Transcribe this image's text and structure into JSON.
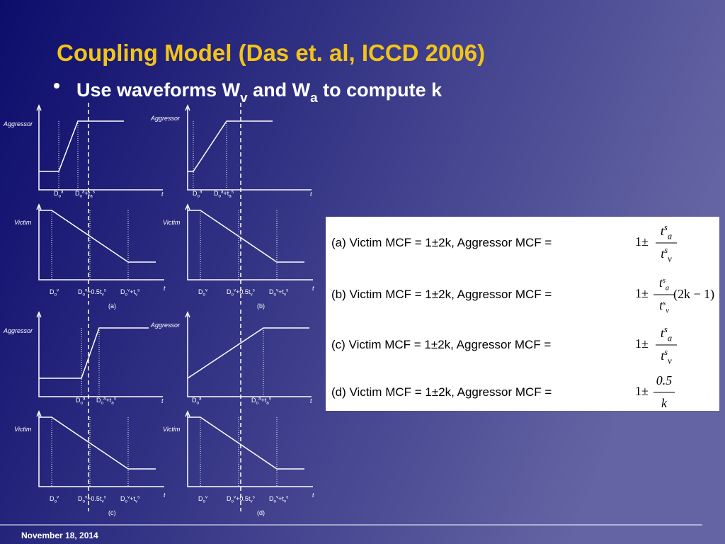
{
  "title": "Coupling Model (Das et. al, ICCD 2006)",
  "bullet": [
    {
      "text": "Use waveforms W"
    },
    {
      "sub": "v"
    },
    {
      "text": " and W"
    },
    {
      "sub": "a"
    },
    {
      "text": " to compute k"
    }
  ],
  "panels": [
    {
      "caption": "(a)",
      "aggressor": "Aggressor",
      "victim": "Victim",
      "aggressor_axis_label": "t",
      "victim_axis_label": "t",
      "aggressor_ticks": [
        [
          {
            "text": "D"
          },
          {
            "sub": "o"
          },
          {
            "sup": "a"
          }
        ],
        [
          {
            "text": "D"
          },
          {
            "sub": "o"
          },
          {
            "sup": "a"
          },
          {
            "text": "+t"
          },
          {
            "sub": "a"
          },
          {
            "sup": "s"
          }
        ]
      ],
      "victim_ticks": [
        [
          {
            "text": "D"
          },
          {
            "sub": "o"
          },
          {
            "sup": "v"
          }
        ],
        [
          {
            "text": "D"
          },
          {
            "sub": "o"
          },
          {
            "sup": "v"
          },
          {
            "text": "+0.5t"
          },
          {
            "sub": "v"
          },
          {
            "sup": "s"
          }
        ],
        [
          {
            "text": "D"
          },
          {
            "sub": "o"
          },
          {
            "sup": "v"
          },
          {
            "text": "+t"
          },
          {
            "sub": "v"
          },
          {
            "sup": "s"
          }
        ]
      ]
    },
    {
      "caption": "(b)",
      "aggressor": "Aggressor",
      "victim": "Victim",
      "aggressor_axis_label": "t",
      "victim_axis_label": "t",
      "aggressor_ticks": [
        [
          {
            "text": "D"
          },
          {
            "sub": "o"
          },
          {
            "sup": "a"
          }
        ],
        [
          {
            "text": "D"
          },
          {
            "sub": "o"
          },
          {
            "sup": "a"
          },
          {
            "text": "+t"
          },
          {
            "sub": "a"
          },
          {
            "sup": "s"
          }
        ]
      ],
      "victim_ticks": [
        [
          {
            "text": "D"
          },
          {
            "sub": "o"
          },
          {
            "sup": "v"
          }
        ],
        [
          {
            "text": "D"
          },
          {
            "sub": "o"
          },
          {
            "sup": "v"
          },
          {
            "text": "+0.5t"
          },
          {
            "sub": "v"
          },
          {
            "sup": "s"
          }
        ],
        [
          {
            "text": "D"
          },
          {
            "sub": "o"
          },
          {
            "sup": "v"
          },
          {
            "text": "+t"
          },
          {
            "sub": "v"
          },
          {
            "sup": "s"
          }
        ]
      ]
    },
    {
      "caption": "(c)",
      "aggressor": "Aggressor",
      "victim": "Victim",
      "aggressor_axis_label": "t",
      "victim_axis_label": "t",
      "aggressor_ticks": [
        [
          {
            "text": "D"
          },
          {
            "sub": "o"
          },
          {
            "sup": "a"
          }
        ],
        [
          {
            "text": "D"
          },
          {
            "sub": "o"
          },
          {
            "sup": "a"
          },
          {
            "text": "+t"
          },
          {
            "sub": "a"
          },
          {
            "sup": "s"
          }
        ]
      ],
      "victim_ticks": [
        [
          {
            "text": "D"
          },
          {
            "sub": "o"
          },
          {
            "sup": "v"
          }
        ],
        [
          {
            "text": "D"
          },
          {
            "sub": "o"
          },
          {
            "sup": "v"
          },
          {
            "text": "+0.5t"
          },
          {
            "sub": "v"
          },
          {
            "sup": "s"
          }
        ],
        [
          {
            "text": "D"
          },
          {
            "sub": "o"
          },
          {
            "sup": "v"
          },
          {
            "text": "+t"
          },
          {
            "sub": "v"
          },
          {
            "sup": "s"
          }
        ]
      ]
    },
    {
      "caption": "(d)",
      "aggressor": "Aggressor",
      "victim": "Victim",
      "aggressor_axis_label": "t",
      "victim_axis_label": "t",
      "aggressor_ticks": [
        [
          {
            "text": "D"
          },
          {
            "sub": "o"
          },
          {
            "sup": "a"
          }
        ],
        [
          {
            "text": "D"
          },
          {
            "sub": "o"
          },
          {
            "sup": "a"
          },
          {
            "text": "+t"
          },
          {
            "sub": "a"
          },
          {
            "sup": "s"
          }
        ]
      ],
      "victim_ticks": [
        [
          {
            "text": "D"
          },
          {
            "sub": "o"
          },
          {
            "sup": "v"
          }
        ],
        [
          {
            "text": "D"
          },
          {
            "sub": "o"
          },
          {
            "sup": "v"
          },
          {
            "text": "+0.5t"
          },
          {
            "sub": "v"
          },
          {
            "sup": "s"
          }
        ],
        [
          {
            "text": "D"
          },
          {
            "sub": "o"
          },
          {
            "sup": "v"
          },
          {
            "text": "+t"
          },
          {
            "sub": "v"
          },
          {
            "sup": "s"
          }
        ]
      ]
    }
  ],
  "formulas": [
    {
      "label": "(a) Victim MCF = 1±2k, Aggressor MCF =",
      "prefix": "1±",
      "numerator": [
        {
          "text": "t"
        },
        {
          "sup": "s"
        },
        {
          "sub": "a"
        }
      ],
      "denominator": [
        {
          "text": "t"
        },
        {
          "sup": "s"
        },
        {
          "sub": "v"
        }
      ]
    },
    {
      "label": "(b) Victim MCF = 1±2k, Aggressor MCF =",
      "prefix": "1±",
      "numerator": [
        {
          "text": "t"
        },
        {
          "sup": "s"
        },
        {
          "sub": "a"
        }
      ],
      "denominator": [
        {
          "text": "t"
        },
        {
          "sup": "s"
        },
        {
          "sub": "v"
        }
      ],
      "suffix": "(2k − 1)"
    },
    {
      "label": "(c) Victim MCF = 1±2k, Aggressor MCF =",
      "prefix": "1±",
      "numerator": [
        {
          "text": "t"
        },
        {
          "sup": "s"
        },
        {
          "sub": "a"
        }
      ],
      "denominator": [
        {
          "text": "t"
        },
        {
          "sup": "s"
        },
        {
          "sub": "v"
        }
      ]
    },
    {
      "label": "(d) Victim MCF = 1±2k, Aggressor MCF =",
      "prefix": "1±",
      "numerator": [
        {
          "text": "0.5"
        }
      ],
      "denominator": [
        {
          "text": "k"
        }
      ]
    }
  ],
  "footer": "November 18, 2014"
}
